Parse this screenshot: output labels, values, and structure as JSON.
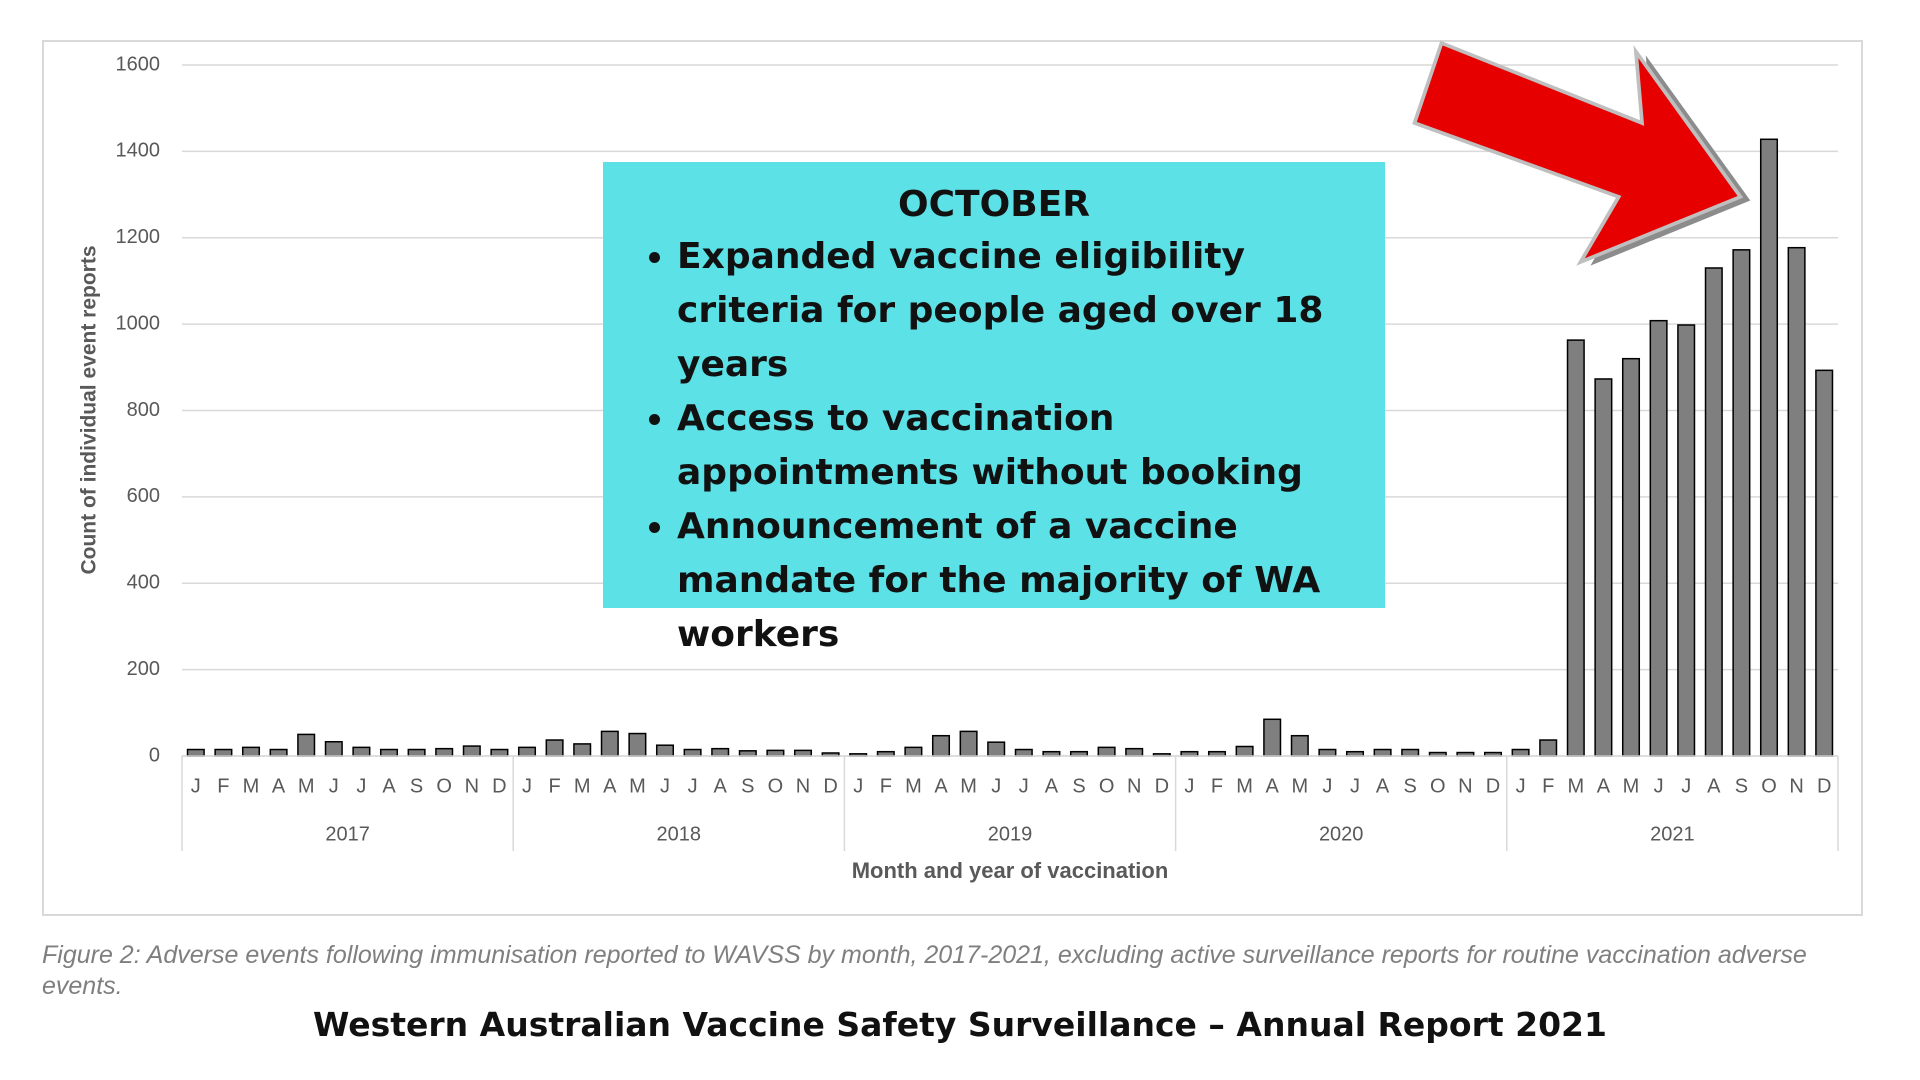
{
  "chart_data": {
    "type": "bar",
    "y_label": "Count of individual event reports",
    "x_label": "Month and year of vaccination",
    "categories": [
      "J",
      "F",
      "M",
      "A",
      "M",
      "J",
      "J",
      "A",
      "S",
      "O",
      "N",
      "D",
      "J",
      "F",
      "M",
      "A",
      "M",
      "J",
      "J",
      "A",
      "S",
      "O",
      "N",
      "D",
      "J",
      "F",
      "M",
      "A",
      "M",
      "J",
      "J",
      "A",
      "S",
      "O",
      "N",
      "D",
      "J",
      "F",
      "M",
      "A",
      "M",
      "J",
      "J",
      "A",
      "S",
      "O",
      "N",
      "D",
      "J",
      "F",
      "M",
      "A",
      "M",
      "J",
      "J",
      "A",
      "S",
      "O",
      "N",
      "D"
    ],
    "groups": [
      "2017",
      "2018",
      "2019",
      "2020",
      "2021"
    ],
    "values": [
      15,
      15,
      20,
      15,
      50,
      33,
      20,
      15,
      15,
      17,
      23,
      15,
      20,
      37,
      28,
      57,
      52,
      25,
      15,
      17,
      12,
      13,
      13,
      7,
      5,
      10,
      20,
      47,
      57,
      32,
      15,
      10,
      10,
      20,
      17,
      5,
      10,
      10,
      22,
      85,
      47,
      15,
      10,
      15,
      15,
      8,
      8,
      8,
      15,
      37,
      963,
      873,
      920,
      1008,
      998,
      1130,
      1172,
      1428,
      1177,
      893
    ],
    "color": "#7f7f7f",
    "ylim": [
      0,
      1600
    ],
    "yticks": [
      0,
      200,
      400,
      600,
      800,
      1000,
      1200,
      1400,
      1600
    ],
    "grid": true
  },
  "annotation": {
    "title": "OCTOBER",
    "items": [
      "Expanded vaccine eligibility criteria for people aged over 18 years",
      "Access to vaccination appointments without booking",
      "Announcement of a vaccine mandate for the majority of WA workers"
    ]
  },
  "caption": "Figure 2: Adverse events following immunisation reported to WAVSS by month, 2017-2021, excluding active surveillance reports for routine vaccination adverse events.",
  "footer": "Western Australian Vaccine Safety Surveillance – Annual Report 2021"
}
